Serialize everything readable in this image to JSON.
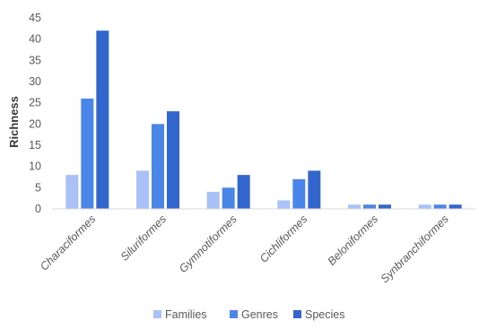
{
  "chart_data": {
    "type": "bar",
    "title": "",
    "xlabel": "",
    "ylabel": "Richness",
    "ylim": [
      0,
      45
    ],
    "yticks": [
      0,
      5,
      10,
      15,
      20,
      25,
      30,
      35,
      40,
      45
    ],
    "grid": false,
    "legend_position": "bottom",
    "categories": [
      "Characiformes",
      "Siluriformes",
      "Gymnotiformes",
      "Cichliformes",
      "Beloniformes",
      "Synbranchiformes"
    ],
    "series": [
      {
        "name": "Families",
        "color": "#a9c1f6",
        "values": [
          8,
          9,
          4,
          2,
          1,
          1
        ]
      },
      {
        "name": "Genres",
        "color": "#4a86e8",
        "values": [
          26,
          20,
          5,
          7,
          1,
          1
        ]
      },
      {
        "name": "Species",
        "color": "#3366cc",
        "values": [
          42,
          23,
          8,
          9,
          1,
          1
        ]
      }
    ]
  }
}
